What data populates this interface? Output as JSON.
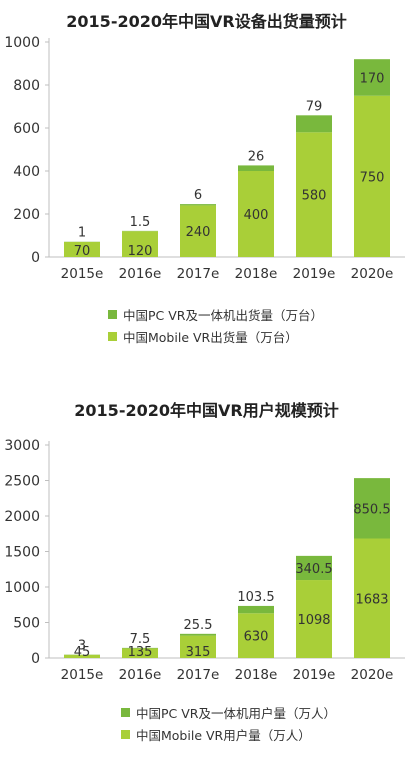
{
  "chart_data": [
    {
      "type": "bar",
      "stacked": true,
      "title": "2015-2020年中国VR设备出货量预计",
      "categories": [
        "2015e",
        "2016e",
        "2017e",
        "2018e",
        "2019e",
        "2020e"
      ],
      "ylim": [
        0,
        1000
      ],
      "yticks": [
        0,
        200,
        400,
        600,
        800,
        1000
      ],
      "grid": false,
      "legend_position": "bottom",
      "series": [
        {
          "name": "中国Mobile VR出货量（万台）",
          "values": [
            70,
            120,
            240,
            400,
            580,
            750
          ],
          "color": "#a9cf38"
        },
        {
          "name": "中国PC VR及一体机出货量（万台）",
          "values": [
            1,
            1.5,
            6,
            26,
            79,
            170
          ],
          "color": "#79b83d"
        }
      ],
      "labels": {
        "base": [
          "70",
          "120",
          "240",
          "400",
          "580",
          "750"
        ],
        "top": [
          "1",
          "1.5",
          "6",
          "26",
          "79",
          "170"
        ]
      }
    },
    {
      "type": "bar",
      "stacked": true,
      "title": "2015-2020年中国VR用户规模预计",
      "categories": [
        "2015e",
        "2016e",
        "2017e",
        "2018e",
        "2019e",
        "2020e"
      ],
      "ylim": [
        0,
        3000
      ],
      "yticks": [
        0,
        500,
        1000,
        1500,
        2000,
        2500,
        3000
      ],
      "grid": false,
      "legend_position": "bottom",
      "series": [
        {
          "name": "中国Mobile VR用户量（万人）",
          "values": [
            45,
            135,
            315,
            630,
            1098,
            1683
          ],
          "color": "#a9cf38"
        },
        {
          "name": "中国PC VR及一体机用户量（万人）",
          "values": [
            3,
            7.5,
            25.5,
            103.5,
            340.5,
            850.5
          ],
          "color": "#79b83d"
        }
      ],
      "labels": {
        "base": [
          "45",
          "135",
          "315",
          "630",
          "1098",
          "1683"
        ],
        "top": [
          "3",
          "7.5",
          "25.5",
          "103.5",
          "340.5",
          "850.5"
        ]
      }
    }
  ]
}
